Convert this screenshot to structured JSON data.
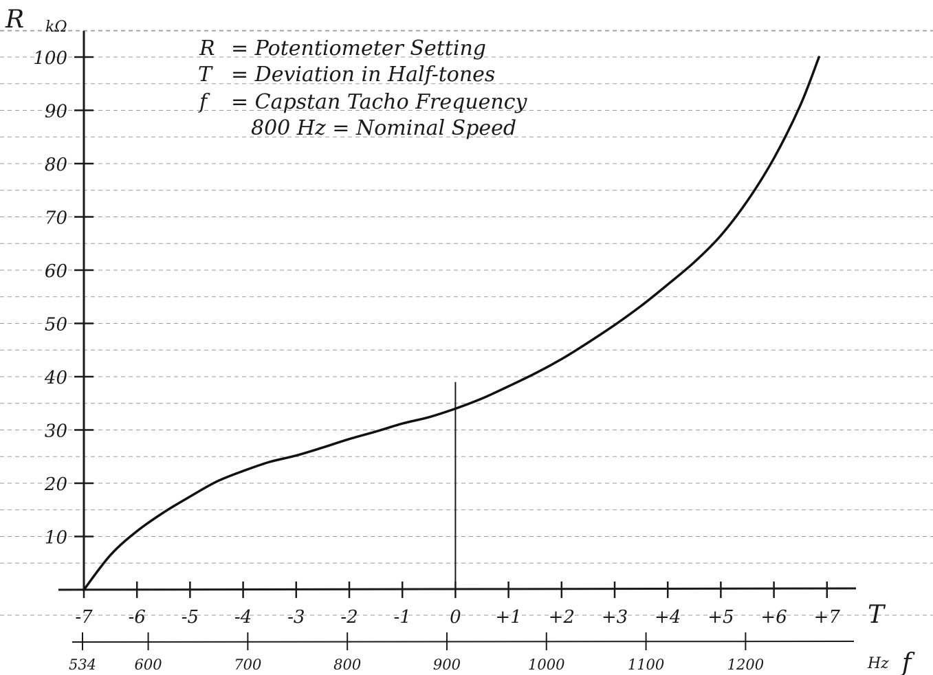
{
  "chart_data": {
    "type": "line",
    "y_axis": {
      "symbol": "R",
      "unit": "kΩ",
      "ticks": [
        "10",
        "20",
        "30",
        "40",
        "50",
        "60",
        "70",
        "80",
        "90",
        "100"
      ],
      "tick_labels_as_printed": [
        "10",
        "20",
        "30",
        "40",
        "50",
        "60",
        "70",
        "80",
        "90",
        "100"
      ],
      "ylim": [
        0,
        100
      ]
    },
    "x_axis_T": {
      "symbol": "T",
      "ticks": [
        -7,
        -6,
        -5,
        -4,
        -3,
        -2,
        -1,
        0,
        1,
        2,
        3,
        4,
        5,
        6,
        7
      ],
      "tick_labels": [
        "-7",
        "-6",
        "-5",
        "-4",
        "-3",
        "-2",
        "-1",
        "0",
        "+1",
        "+2",
        "+3",
        "+4",
        "+5",
        "+6",
        "+7"
      ]
    },
    "x_axis_f": {
      "symbol": "f",
      "unit": "Hz",
      "ticks": [
        534,
        600,
        700,
        800,
        900,
        1000,
        1100,
        1200
      ],
      "tick_labels": [
        "534",
        "600",
        "700",
        "800",
        "900",
        "1000",
        "1100",
        "1200"
      ]
    },
    "legend": [
      {
        "symbol": "R",
        "text": "= Potentiometer Setting"
      },
      {
        "symbol": "T",
        "text": "= Deviation in Half-tones"
      },
      {
        "symbol": "f",
        "text": "= Capstan Tacho Frequency"
      },
      {
        "symbol": "",
        "text": "800 Hz = Nominal Speed"
      }
    ],
    "series": [
      {
        "x_T": [
          -7,
          -6.5,
          -6,
          -5.5,
          -5,
          -4.5,
          -4,
          -3.5,
          -3,
          -2.5,
          -2,
          -1.5,
          -1,
          -0.5,
          0,
          0.5,
          1,
          1.5,
          2,
          2.5,
          3,
          3.5,
          4,
          4.5,
          5,
          5.5,
          6,
          6.5,
          6.85
        ],
        "y": [
          0,
          6.5,
          11,
          14.5,
          17.5,
          20.3,
          22.3,
          24,
          25.2,
          26.7,
          28.3,
          29.7,
          31.2,
          32.4,
          34,
          35.9,
          38.2,
          40.6,
          43.3,
          46.4,
          49.7,
          53.3,
          57.3,
          61.5,
          66.5,
          73,
          81,
          91,
          100
        ]
      }
    ],
    "reference_line": {
      "x_T": 0,
      "y_top": 39
    },
    "grid": "horizontal dashed lines"
  }
}
